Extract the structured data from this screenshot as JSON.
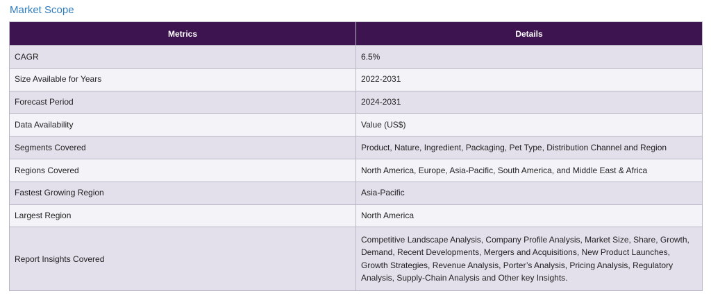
{
  "section_title": "Market Scope",
  "table": {
    "headers": [
      "Metrics",
      "Details"
    ],
    "rows": [
      {
        "metric": "CAGR",
        "details": "6.5%"
      },
      {
        "metric": "Size Available for Years",
        "details": "2022-2031"
      },
      {
        "metric": "Forecast Period",
        "details": "2024-2031"
      },
      {
        "metric": "Data Availability",
        "details": "Value (US$)"
      },
      {
        "metric": "Segments Covered",
        "details": "Product, Nature, Ingredient, Packaging, Pet Type, Distribution Channel and Region"
      },
      {
        "metric": "Regions Covered",
        "details": "North America, Europe, Asia-Pacific, South America, and Middle East & Africa"
      },
      {
        "metric": "Fastest Growing Region",
        "details": "Asia-Pacific"
      },
      {
        "metric": "Largest Region",
        "details": "North America"
      },
      {
        "metric": "Report Insights Covered",
        "details": "Competitive Landscape Analysis, Company Profile Analysis, Market Size, Share, Growth, Demand, Recent Developments, Mergers and Acquisitions, New Product Launches, Growth Strategies, Revenue Analysis, Porter’s Analysis, Pricing Analysis, Regulatory Analysis, Supply-Chain Analysis and Other key Insights."
      }
    ]
  },
  "colors": {
    "header_bg": "#3d1350",
    "row_odd_bg": "#e3e0ec",
    "row_even_bg": "#f4f3f8",
    "title_color": "#2e7bbd"
  }
}
